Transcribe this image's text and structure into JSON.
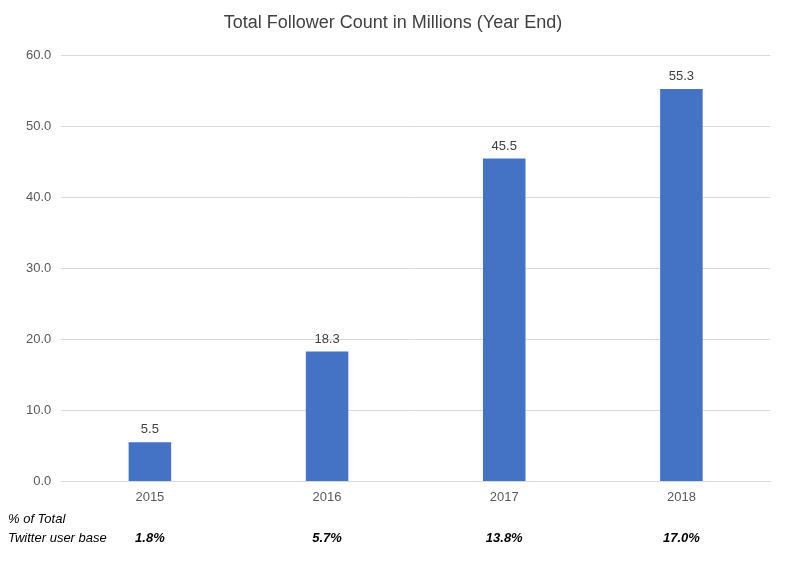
{
  "chart_data": {
    "type": "bar",
    "title": "Total Follower Count in Millions (Year End)",
    "categories": [
      "2015",
      "2016",
      "2017",
      "2018"
    ],
    "values": [
      5.5,
      18.3,
      45.5,
      55.3
    ],
    "color": "#4472c4",
    "ylim": [
      0,
      60
    ],
    "yticks": [
      {
        "value": 0,
        "label": "0.0"
      },
      {
        "value": 10,
        "label": "10.0"
      },
      {
        "value": 20,
        "label": "20.0"
      },
      {
        "value": 30,
        "label": "30.0"
      },
      {
        "value": 40,
        "label": "40.0"
      },
      {
        "value": 50,
        "label": "50.0"
      },
      {
        "value": 60,
        "label": "60.0"
      }
    ],
    "grid": true,
    "data_labels": true,
    "annotations": {
      "label": [
        "% of Total",
        "Twitter user base"
      ],
      "values": [
        1.8,
        5.7,
        13.8,
        17.0
      ],
      "value_labels": [
        "1.8%",
        "5.7%",
        "13.8%",
        "17.0%"
      ]
    }
  }
}
